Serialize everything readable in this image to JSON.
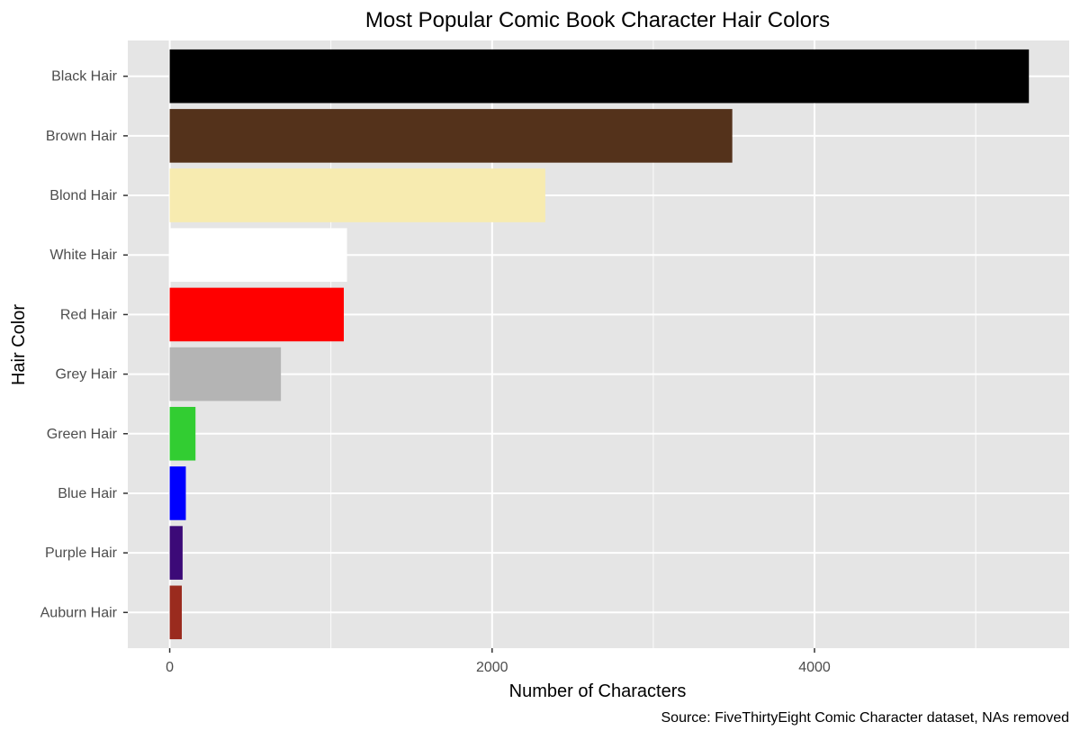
{
  "chart_data": {
    "type": "bar",
    "orientation": "horizontal",
    "title": "Most Popular Comic Book Character Hair Colors",
    "xlabel": "Number of Characters",
    "ylabel": "Hair Color",
    "caption": "Source: FiveThirtyEight Comic Character dataset, NAs removed",
    "xlim": [
      -260,
      5580
    ],
    "x_ticks": [
      0,
      2000,
      4000
    ],
    "x_minor_ticks": [
      1000,
      3000,
      5000
    ],
    "grid": true,
    "legend": "none",
    "panel_background": "#e5e5e5",
    "grid_color": "#ffffff",
    "categories": [
      "Black Hair",
      "Brown Hair",
      "Blond Hair",
      "White Hair",
      "Red Hair",
      "Grey Hair",
      "Green Hair",
      "Blue Hair",
      "Purple Hair",
      "Auburn Hair"
    ],
    "values": [
      5330,
      3490,
      2330,
      1100,
      1080,
      690,
      160,
      100,
      80,
      75
    ],
    "colors": [
      "#000000",
      "#54321b",
      "#f7ebb0",
      "#ffffff",
      "#ff0000",
      "#b4b4b4",
      "#32cd32",
      "#0000ff",
      "#3c0a78",
      "#9a2b1e"
    ]
  }
}
